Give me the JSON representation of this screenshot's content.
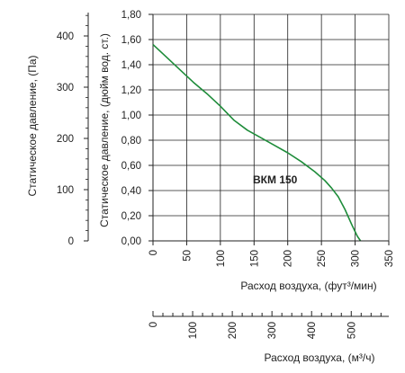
{
  "chart_data": {
    "type": "line",
    "series": [
      {
        "name": "BKM 150",
        "color": "#1e8c3a",
        "x_cfm": [
          0,
          20,
          40,
          60,
          80,
          100,
          120,
          140,
          160,
          180,
          200,
          220,
          240,
          255,
          265,
          275,
          285,
          295,
          303,
          308
        ],
        "y_inwg": [
          1.56,
          1.46,
          1.36,
          1.26,
          1.17,
          1.07,
          0.96,
          0.88,
          0.82,
          0.76,
          0.7,
          0.63,
          0.55,
          0.48,
          0.42,
          0.35,
          0.25,
          0.13,
          0.04,
          0.0
        ]
      }
    ],
    "series_label": "ВКМ 150",
    "grid": true,
    "line_color": "#1e8c3a",
    "axes": {
      "pa": {
        "label": "Статическое давление, (Па)",
        "range": [
          0,
          450
        ],
        "ticks": [
          "0",
          "100",
          "200",
          "300",
          "400"
        ],
        "tick_values": [
          0,
          100,
          200,
          300,
          400
        ]
      },
      "inwg": {
        "label": "Статическое давление, (дюйм вод. ст.)",
        "range": [
          0,
          1.8
        ],
        "ticks": [
          "0,00",
          "0,20",
          "0,40",
          "0,60",
          "0,80",
          "1,00",
          "1,20",
          "1,40",
          "1,60",
          "1,80"
        ],
        "tick_values": [
          0,
          0.2,
          0.4,
          0.6,
          0.8,
          1.0,
          1.2,
          1.4,
          1.6,
          1.8
        ]
      },
      "cfm": {
        "label": "Расход воздуха, (фут³/мин)",
        "range": [
          0,
          350
        ],
        "ticks": [
          "0",
          "50",
          "100",
          "150",
          "200",
          "250",
          "300",
          "350"
        ],
        "tick_values": [
          0,
          50,
          100,
          150,
          200,
          250,
          300,
          350
        ]
      },
      "m3h": {
        "label": "Расход воздуха, (м³/ч)",
        "range": [
          0,
          594.7
        ],
        "ticks": [
          "0",
          "100",
          "200",
          "300",
          "400",
          "500"
        ],
        "tick_values": [
          0,
          100,
          200,
          300,
          400,
          500
        ]
      }
    }
  }
}
